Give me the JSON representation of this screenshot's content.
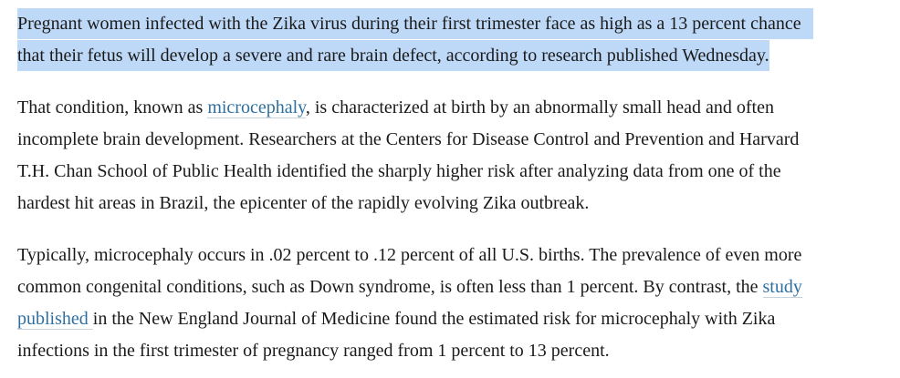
{
  "colors": {
    "page_bg": "#ffffff",
    "text": "#1a1a1a",
    "selection_highlight": "#BED9F7",
    "link": "#2F6FA0",
    "link_underline": "#C9D2DA"
  },
  "article": {
    "paragraphs": [
      {
        "name": "lede-paragraph",
        "selected": true,
        "lines": [
          {
            "segments": [
              {
                "type": "text",
                "text": "Pregnant women infected with the Zika virus during their first trimester face as high as a 13 percent chance"
              }
            ]
          },
          {
            "segments": [
              {
                "type": "text",
                "text": "that their fetus will develop a severe and rare brain defect, according to research published Wednesday."
              }
            ]
          }
        ]
      },
      {
        "name": "microcephaly-paragraph",
        "selected": false,
        "lines": [
          {
            "segments": [
              {
                "type": "text",
                "text": "That condition, known as "
              },
              {
                "type": "link",
                "name": "microcephaly-link",
                "text": "microcephaly"
              },
              {
                "type": "text",
                "text": ", is characterized at birth by an abnormally small head and often"
              }
            ]
          },
          {
            "segments": [
              {
                "type": "text",
                "text": "incomplete brain development. Researchers at the Centers for Disease Control and Prevention and Harvard"
              }
            ]
          },
          {
            "segments": [
              {
                "type": "text",
                "text": "T.H. Chan School of Public Health identified the sharply higher risk after analyzing data from one of the"
              }
            ]
          },
          {
            "segments": [
              {
                "type": "text",
                "text": "hardest hit areas in Brazil, the epicenter of the rapidly evolving Zika outbreak."
              }
            ]
          }
        ]
      },
      {
        "name": "prevalence-paragraph",
        "selected": false,
        "lines": [
          {
            "segments": [
              {
                "type": "text",
                "text": "Typically, microcephaly occurs in .02 percent to .12 percent of all U.S. births. The prevalence of even more"
              }
            ]
          },
          {
            "segments": [
              {
                "type": "text",
                "text": "common congenital conditions, such as Down syndrome, is often less than 1 percent. By contrast, the "
              },
              {
                "type": "link",
                "name": "study-published-link",
                "text": "study"
              }
            ]
          },
          {
            "segments": [
              {
                "type": "link",
                "name": "study-published-link",
                "text": "published "
              },
              {
                "type": "text",
                "text": "in the New England Journal of Medicine found the estimated risk for microcephaly with Zika"
              }
            ]
          },
          {
            "segments": [
              {
                "type": "text",
                "text": "infections in the first trimester of pregnancy ranged from 1 percent to 13 percent."
              }
            ]
          }
        ]
      }
    ]
  }
}
